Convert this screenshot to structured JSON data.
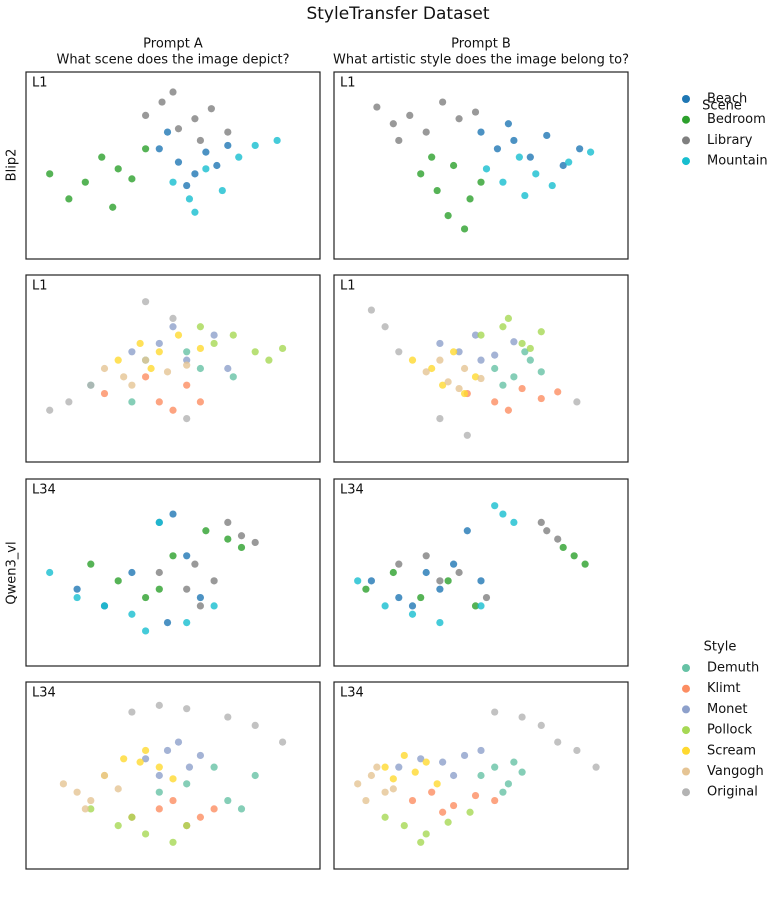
{
  "title": "StyleTransfer Dataset",
  "column_titles": [
    [
      "Prompt A",
      "What scene does the image depict?"
    ],
    [
      "Prompt B",
      "What artistic style does the image belong to?"
    ]
  ],
  "row_labels": [
    "Blip2",
    "Qwen3_vl"
  ],
  "legend_titles": [
    "Scene",
    "Style"
  ],
  "chart_data": [
    {
      "type": "scatter",
      "panel_label": "L1",
      "xlim": [
        0,
        100
      ],
      "ylim": [
        0,
        100
      ],
      "series": [
        {
          "name": "Beach",
          "color": "#1f77b4",
          "x": [
            45,
            52,
            58,
            62,
            66,
            55,
            70,
            48
          ],
          "y": [
            60,
            52,
            45,
            58,
            50,
            38,
            62,
            70
          ]
        },
        {
          "name": "Bedroom",
          "color": "#2ca02c",
          "x": [
            5,
            12,
            18,
            24,
            30,
            35,
            40,
            28
          ],
          "y": [
            45,
            30,
            40,
            55,
            48,
            42,
            60,
            25
          ]
        },
        {
          "name": "Library",
          "color": "#7f7f7f",
          "x": [
            40,
            46,
            52,
            58,
            64,
            70,
            50,
            60
          ],
          "y": [
            80,
            88,
            72,
            78,
            84,
            70,
            94,
            65
          ]
        },
        {
          "name": "Mountain",
          "color": "#17becf",
          "x": [
            50,
            56,
            62,
            68,
            74,
            80,
            58,
            88
          ],
          "y": [
            40,
            30,
            48,
            35,
            55,
            62,
            22,
            65
          ]
        }
      ]
    },
    {
      "type": "scatter",
      "panel_label": "L1",
      "xlim": [
        0,
        100
      ],
      "ylim": [
        0,
        100
      ],
      "series": [
        {
          "name": "Beach",
          "color": "#1f77b4",
          "x": [
            50,
            56,
            62,
            68,
            74,
            80,
            60,
            86
          ],
          "y": [
            70,
            60,
            65,
            55,
            68,
            50,
            75,
            60
          ]
        },
        {
          "name": "Bedroom",
          "color": "#2ca02c",
          "x": [
            28,
            34,
            40,
            46,
            50,
            38,
            44,
            32
          ],
          "y": [
            45,
            35,
            50,
            30,
            40,
            20,
            12,
            55
          ]
        },
        {
          "name": "Library",
          "color": "#7f7f7f",
          "x": [
            12,
            18,
            24,
            30,
            36,
            42,
            20,
            48
          ],
          "y": [
            85,
            75,
            80,
            70,
            88,
            78,
            65,
            82
          ]
        },
        {
          "name": "Mountain",
          "color": "#17becf",
          "x": [
            52,
            58,
            64,
            70,
            76,
            82,
            66,
            90
          ],
          "y": [
            48,
            40,
            55,
            45,
            38,
            52,
            32,
            58
          ]
        }
      ]
    },
    {
      "type": "scatter",
      "panel_label": "L1",
      "xlim": [
        0,
        100
      ],
      "ylim": [
        0,
        100
      ],
      "series": [
        {
          "name": "Demuth",
          "color": "#66c2a5",
          "x": [
            20,
            40,
            55,
            60,
            72,
            35
          ],
          "y": [
            40,
            55,
            60,
            50,
            45,
            30
          ]
        },
        {
          "name": "Klimt",
          "color": "#fc8d62",
          "x": [
            25,
            45,
            50,
            55,
            60,
            40
          ],
          "y": [
            35,
            30,
            25,
            40,
            30,
            45
          ]
        },
        {
          "name": "Monet",
          "color": "#8da0cb",
          "x": [
            35,
            45,
            55,
            65,
            70,
            50
          ],
          "y": [
            60,
            65,
            55,
            70,
            50,
            75
          ]
        },
        {
          "name": "Pollock",
          "color": "#a6d854",
          "x": [
            65,
            72,
            80,
            85,
            90,
            60
          ],
          "y": [
            65,
            70,
            60,
            55,
            62,
            75
          ]
        },
        {
          "name": "Scream",
          "color": "#ffd92f",
          "x": [
            30,
            38,
            45,
            52,
            60,
            42
          ],
          "y": [
            55,
            65,
            60,
            70,
            62,
            50
          ]
        },
        {
          "name": "Vangogh",
          "color": "#e5c494",
          "x": [
            25,
            32,
            40,
            48,
            55,
            35
          ],
          "y": [
            50,
            45,
            55,
            48,
            52,
            40
          ]
        },
        {
          "name": "Original",
          "color": "#b3b3b3",
          "x": [
            5,
            12,
            20,
            40,
            50,
            55
          ],
          "y": [
            25,
            30,
            40,
            90,
            80,
            20
          ]
        }
      ]
    },
    {
      "type": "scatter",
      "panel_label": "L1",
      "xlim": [
        0,
        100
      ],
      "ylim": [
        0,
        100
      ],
      "series": [
        {
          "name": "Demuth",
          "color": "#66c2a5",
          "x": [
            55,
            62,
            68,
            72,
            66,
            58
          ],
          "y": [
            50,
            45,
            55,
            48,
            60,
            40
          ]
        },
        {
          "name": "Klimt",
          "color": "#fc8d62",
          "x": [
            45,
            55,
            65,
            72,
            78,
            60
          ],
          "y": [
            35,
            30,
            38,
            32,
            36,
            25
          ]
        },
        {
          "name": "Monet",
          "color": "#8da0cb",
          "x": [
            35,
            42,
            48,
            55,
            62,
            50
          ],
          "y": [
            65,
            60,
            70,
            58,
            66,
            55
          ]
        },
        {
          "name": "Pollock",
          "color": "#a6d854",
          "x": [
            50,
            58,
            65,
            72,
            60,
            68
          ],
          "y": [
            70,
            75,
            65,
            72,
            80,
            62
          ]
        },
        {
          "name": "Scream",
          "color": "#ffd92f",
          "x": [
            25,
            32,
            40,
            48,
            36,
            44
          ],
          "y": [
            55,
            50,
            60,
            45,
            40,
            35
          ]
        },
        {
          "name": "Vangogh",
          "color": "#e5c494",
          "x": [
            30,
            38,
            44,
            50,
            42,
            35
          ],
          "y": [
            48,
            42,
            50,
            44,
            38,
            55
          ]
        },
        {
          "name": "Original",
          "color": "#b3b3b3",
          "x": [
            10,
            15,
            20,
            35,
            45,
            85
          ],
          "y": [
            85,
            75,
            60,
            20,
            10,
            30
          ]
        }
      ]
    },
    {
      "type": "scatter",
      "panel_label": "L34",
      "xlim": [
        0,
        100
      ],
      "ylim": [
        0,
        100
      ],
      "series": [
        {
          "name": "Beach",
          "color": "#1f77b4",
          "x": [
            15,
            25,
            35,
            45,
            50,
            55,
            60,
            48
          ],
          "y": [
            40,
            30,
            50,
            80,
            85,
            60,
            35,
            20
          ]
        },
        {
          "name": "Bedroom",
          "color": "#2ca02c",
          "x": [
            20,
            30,
            40,
            50,
            62,
            70,
            75,
            45
          ],
          "y": [
            55,
            45,
            35,
            60,
            75,
            70,
            65,
            40
          ]
        },
        {
          "name": "Library",
          "color": "#7f7f7f",
          "x": [
            45,
            55,
            60,
            65,
            70,
            75,
            80,
            58
          ],
          "y": [
            50,
            40,
            30,
            45,
            80,
            72,
            68,
            55
          ]
        },
        {
          "name": "Mountain",
          "color": "#17becf",
          "x": [
            5,
            15,
            25,
            35,
            40,
            45,
            55,
            65
          ],
          "y": [
            50,
            35,
            30,
            25,
            15,
            80,
            20,
            30
          ]
        }
      ]
    },
    {
      "type": "scatter",
      "panel_label": "L34",
      "xlim": [
        0,
        100
      ],
      "ylim": [
        0,
        100
      ],
      "series": [
        {
          "name": "Beach",
          "color": "#1f77b4",
          "x": [
            10,
            20,
            30,
            40,
            50,
            45,
            35,
            25
          ],
          "y": [
            45,
            35,
            50,
            55,
            45,
            75,
            40,
            30
          ]
        },
        {
          "name": "Bedroom",
          "color": "#2ca02c",
          "x": [
            8,
            18,
            28,
            38,
            48,
            80,
            84,
            88
          ],
          "y": [
            40,
            50,
            35,
            45,
            30,
            65,
            60,
            55
          ]
        },
        {
          "name": "Library",
          "color": "#7f7f7f",
          "x": [
            20,
            30,
            42,
            72,
            74,
            78,
            52,
            35
          ],
          "y": [
            55,
            60,
            50,
            80,
            75,
            70,
            35,
            45
          ]
        },
        {
          "name": "Mountain",
          "color": "#17becf",
          "x": [
            5,
            15,
            25,
            35,
            50,
            55,
            58,
            62
          ],
          "y": [
            45,
            30,
            25,
            20,
            30,
            90,
            85,
            80
          ]
        }
      ]
    },
    {
      "type": "scatter",
      "panel_label": "L34",
      "xlim": [
        0,
        100
      ],
      "ylim": [
        0,
        100
      ],
      "series": [
        {
          "name": "Demuth",
          "color": "#66c2a5",
          "x": [
            45,
            55,
            65,
            70,
            75,
            80
          ],
          "y": [
            40,
            45,
            55,
            35,
            30,
            50
          ]
        },
        {
          "name": "Klimt",
          "color": "#fc8d62",
          "x": [
            35,
            45,
            55,
            60,
            65,
            50
          ],
          "y": [
            25,
            30,
            20,
            25,
            30,
            35
          ]
        },
        {
          "name": "Monet",
          "color": "#8da0cb",
          "x": [
            40,
            48,
            52,
            56,
            60,
            45
          ],
          "y": [
            60,
            65,
            70,
            55,
            62,
            50
          ]
        },
        {
          "name": "Pollock",
          "color": "#a6d854",
          "x": [
            20,
            30,
            40,
            50,
            55,
            35
          ],
          "y": [
            30,
            20,
            15,
            10,
            20,
            25
          ]
        },
        {
          "name": "Scream",
          "color": "#ffd92f",
          "x": [
            25,
            32,
            40,
            45,
            50,
            38
          ],
          "y": [
            50,
            60,
            65,
            55,
            48,
            58
          ]
        },
        {
          "name": "Vangogh",
          "color": "#e5c494",
          "x": [
            10,
            15,
            20,
            25,
            30,
            18
          ],
          "y": [
            45,
            40,
            35,
            50,
            42,
            30
          ]
        },
        {
          "name": "Original",
          "color": "#b3b3b3",
          "x": [
            35,
            45,
            55,
            70,
            80,
            90
          ],
          "y": [
            88,
            92,
            90,
            85,
            80,
            70
          ]
        }
      ]
    },
    {
      "type": "scatter",
      "panel_label": "L34",
      "xlim": [
        0,
        100
      ],
      "ylim": [
        0,
        100
      ],
      "series": [
        {
          "name": "Demuth",
          "color": "#66c2a5",
          "x": [
            50,
            55,
            60,
            65,
            58,
            62
          ],
          "y": [
            50,
            55,
            45,
            52,
            40,
            58
          ]
        },
        {
          "name": "Klimt",
          "color": "#fc8d62",
          "x": [
            25,
            32,
            40,
            48,
            55,
            36
          ],
          "y": [
            35,
            40,
            32,
            38,
            35,
            28
          ]
        },
        {
          "name": "Monet",
          "color": "#8da0cb",
          "x": [
            20,
            28,
            36,
            44,
            50,
            40
          ],
          "y": [
            55,
            60,
            58,
            62,
            65,
            50
          ]
        },
        {
          "name": "Pollock",
          "color": "#a6d854",
          "x": [
            15,
            22,
            30,
            38,
            46,
            28
          ],
          "y": [
            25,
            20,
            15,
            22,
            28,
            10
          ]
        },
        {
          "name": "Scream",
          "color": "#ffd92f",
          "x": [
            15,
            22,
            30,
            18,
            26,
            34
          ],
          "y": [
            55,
            62,
            58,
            48,
            52,
            45
          ]
        },
        {
          "name": "Vangogh",
          "color": "#e5c494",
          "x": [
            5,
            10,
            15,
            8,
            12,
            18
          ],
          "y": [
            45,
            50,
            40,
            35,
            55,
            42
          ]
        },
        {
          "name": "Original",
          "color": "#b3b3b3",
          "x": [
            55,
            65,
            72,
            78,
            85,
            92
          ],
          "y": [
            88,
            85,
            80,
            70,
            65,
            55
          ]
        }
      ]
    }
  ]
}
